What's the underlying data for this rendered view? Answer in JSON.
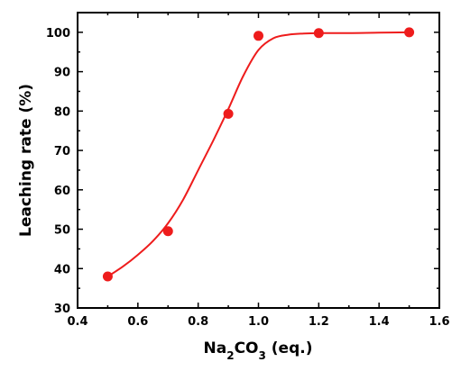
{
  "chart_data": {
    "type": "scatter",
    "ylabel": "Leaching rate (%)",
    "xlabel": {
      "main": "Na",
      "sub1": "2",
      "mid": "CO",
      "sub2": "3",
      "tail": " (eq.)"
    },
    "xlim": [
      0.4,
      1.6
    ],
    "ylim": [
      30,
      105
    ],
    "xticks": [
      0.4,
      0.6,
      0.8,
      1.0,
      1.2,
      1.4,
      1.6
    ],
    "xtick_labels": [
      "0.4",
      "0.6",
      "0.8",
      "1.0",
      "1.2",
      "1.4",
      "1.6"
    ],
    "yticks": [
      30,
      40,
      50,
      60,
      70,
      80,
      90,
      100
    ],
    "ytick_labels": [
      "30",
      "40",
      "50",
      "60",
      "70",
      "80",
      "90",
      "100"
    ],
    "grid": false,
    "series": [
      {
        "points": [
          {
            "x": 0.5,
            "y": 38.0
          },
          {
            "x": 0.7,
            "y": 49.5
          },
          {
            "x": 0.9,
            "y": 79.3
          },
          {
            "x": 1.0,
            "y": 99.1
          },
          {
            "x": 1.2,
            "y": 99.8
          },
          {
            "x": 1.5,
            "y": 100.0
          }
        ],
        "fit": {
          "x": [
            0.5,
            0.55,
            0.6,
            0.65,
            0.7,
            0.75,
            0.8,
            0.85,
            0.9,
            0.95,
            1.0,
            1.05,
            1.1,
            1.15,
            1.2,
            1.3,
            1.4,
            1.5
          ],
          "y": [
            38.0,
            40.5,
            43.5,
            47.0,
            51.5,
            57.5,
            65.0,
            72.5,
            80.5,
            89.0,
            95.5,
            98.5,
            99.4,
            99.7,
            99.8,
            99.8,
            99.9,
            100.0
          ]
        },
        "color": "#ee1c1c"
      }
    ]
  }
}
